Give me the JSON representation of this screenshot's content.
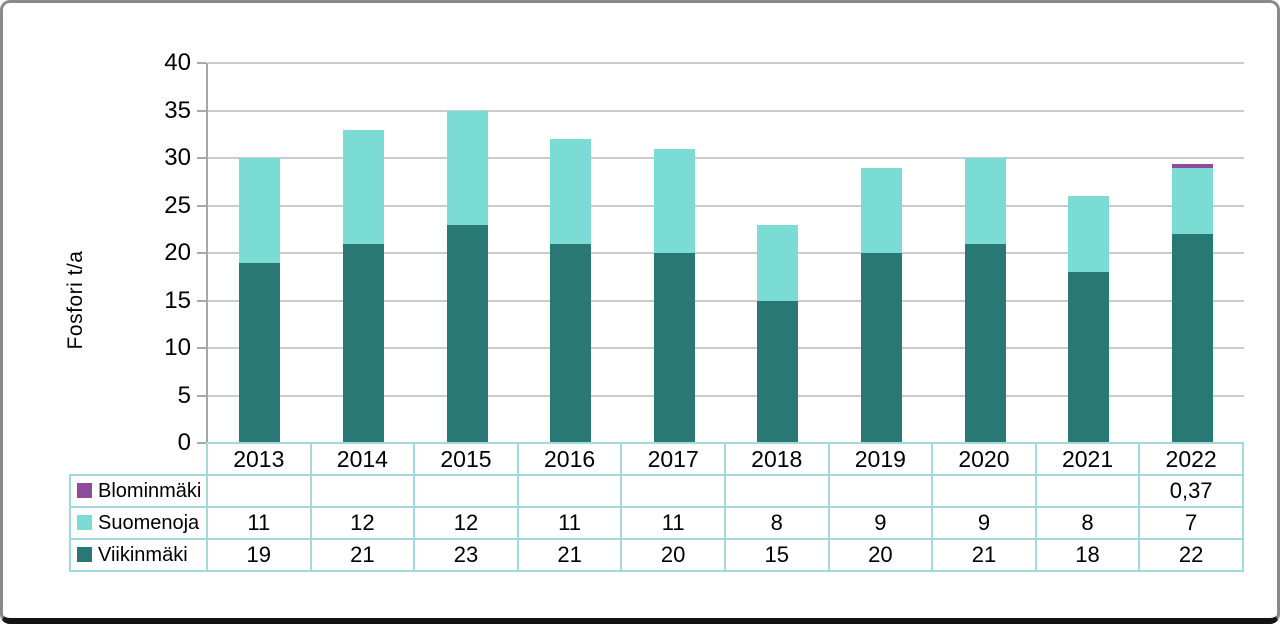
{
  "chart_data": {
    "type": "bar",
    "stacked": true,
    "title": "",
    "xlabel": "",
    "ylabel": "Fosfori t/a",
    "ylim": [
      0,
      40
    ],
    "yticks": [
      0,
      5,
      10,
      15,
      20,
      25,
      30,
      35,
      40
    ],
    "grid": true,
    "legend_position": "table-left",
    "decimal_separator": ",",
    "categories": [
      "2013",
      "2014",
      "2015",
      "2016",
      "2017",
      "2018",
      "2019",
      "2020",
      "2021",
      "2022"
    ],
    "series": [
      {
        "name": "Blominmäki",
        "color": "#8e4d9c",
        "values": [
          null,
          null,
          null,
          null,
          null,
          null,
          null,
          null,
          null,
          0.37
        ],
        "table_display": [
          "",
          "",
          "",
          "",
          "",
          "",
          "",
          "",
          "",
          "0,37"
        ]
      },
      {
        "name": "Suomenoja",
        "color": "#7bdcd6",
        "values": [
          11,
          12,
          12,
          11,
          11,
          8,
          9,
          9,
          8,
          7
        ],
        "table_display": [
          "11",
          "12",
          "12",
          "11",
          "11",
          "8",
          "9",
          "9",
          "8",
          "7"
        ]
      },
      {
        "name": "Viikinmäki",
        "color": "#287873",
        "values": [
          19,
          21,
          23,
          21,
          20,
          15,
          20,
          21,
          18,
          22
        ],
        "table_display": [
          "19",
          "21",
          "23",
          "21",
          "20",
          "15",
          "20",
          "21",
          "18",
          "22"
        ]
      }
    ],
    "stack_order_bottom_to_top": [
      "Viikinmäki",
      "Suomenoja",
      "Blominmäki"
    ]
  },
  "colors": {
    "table_border": "#a2d8de",
    "gridline": "#cbcbcb",
    "axis": "#a8a8a8",
    "text": "#000000",
    "frame_border": "#8a8a8a",
    "frame_bottom": "#141414"
  }
}
